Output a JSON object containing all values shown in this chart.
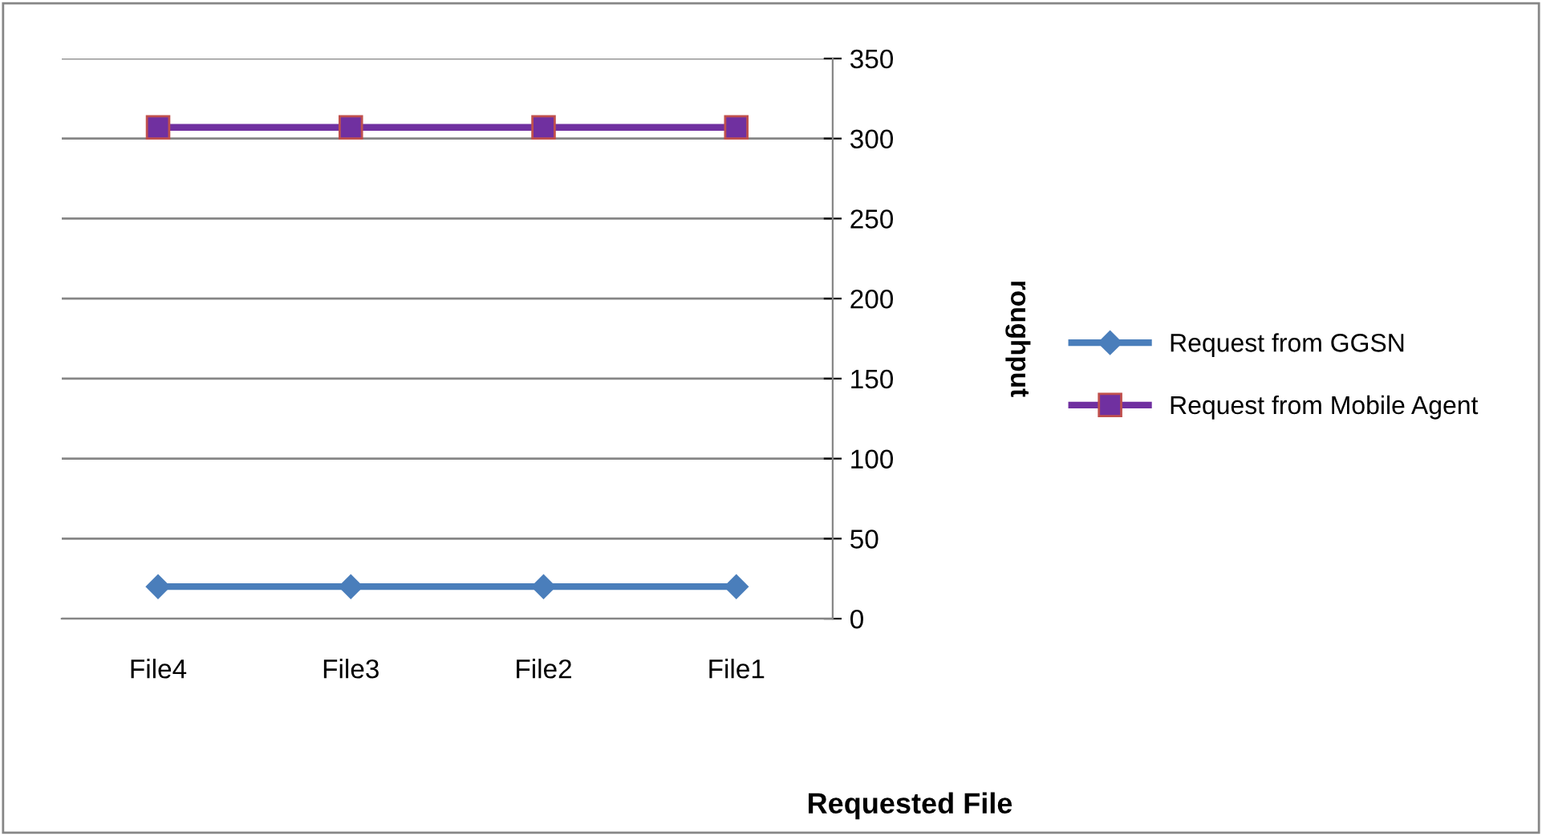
{
  "chart_data": {
    "type": "line",
    "xlabel": "Requested File",
    "ylabel": "roughput",
    "categories": [
      "File4",
      "File3",
      "File2",
      "File1"
    ],
    "series": [
      {
        "name": "Request from GGSN",
        "color": "#4a7ebb",
        "values": [
          20,
          20,
          20,
          20
        ],
        "marker": "diamond"
      },
      {
        "name": "Request from Mobile Agent",
        "color": "#7030a0",
        "values": [
          307,
          307,
          307,
          307
        ],
        "marker": "square"
      }
    ],
    "ylim": [
      0,
      350
    ],
    "yticks": [
      0,
      50,
      100,
      150,
      200,
      250,
      300,
      350
    ],
    "grid": "y",
    "legend": "right",
    "line_style": "solid"
  }
}
